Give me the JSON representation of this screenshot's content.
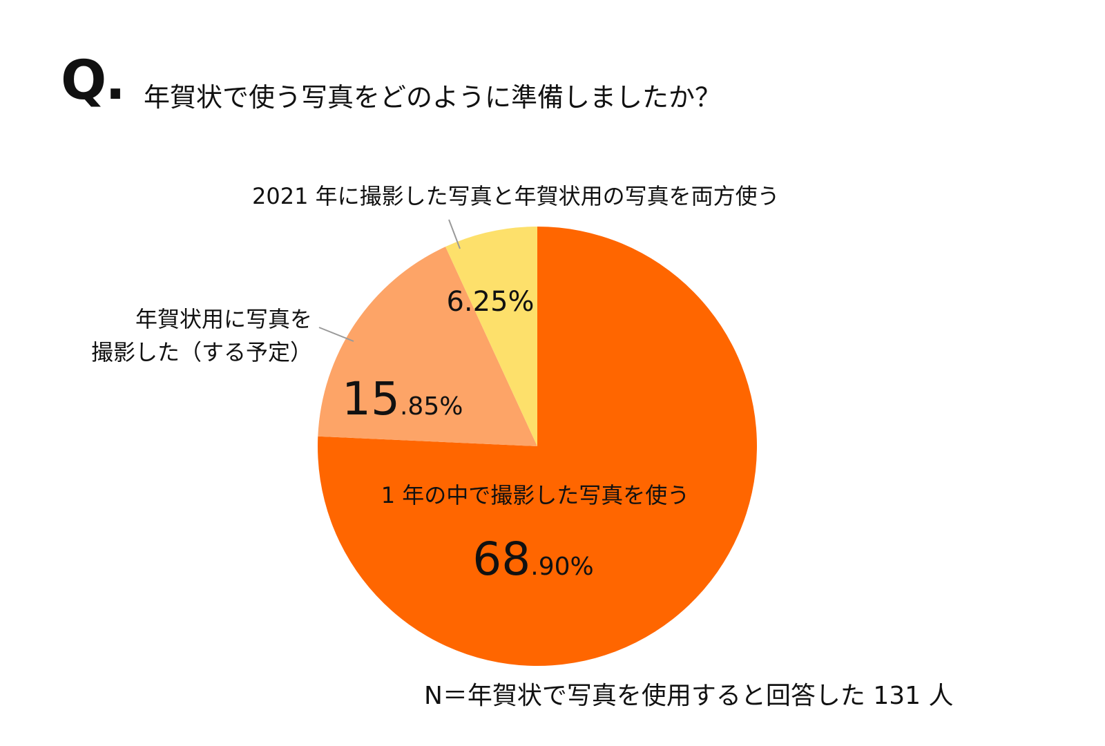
{
  "question": {
    "mark": "Q.",
    "text": "年賀状で使う写真をどのように準備しましたか？"
  },
  "note": "N＝年賀状で写真を使用すると回答した 131 人",
  "chart_data": {
    "type": "pie",
    "title": "年賀状で使う写真をどのように準備しましたか？",
    "slices": [
      {
        "label": "1 年の中で撮影した写真を使う",
        "value": 68.9,
        "value_int": "68",
        "value_dec": ".90%",
        "color": "#ff6600"
      },
      {
        "label_lines": [
          "年賀状用に写真を",
          "撮影した（する予定）"
        ],
        "value": 15.85,
        "value_int": "15",
        "value_dec": ".85%",
        "color": "#fda467"
      },
      {
        "label": "2021 年に撮影した写真と年賀状用の写真を両方使う",
        "value": 6.25,
        "value_text": "6.25%",
        "color": "#fde06b"
      }
    ],
    "leader_color": "#999999"
  }
}
